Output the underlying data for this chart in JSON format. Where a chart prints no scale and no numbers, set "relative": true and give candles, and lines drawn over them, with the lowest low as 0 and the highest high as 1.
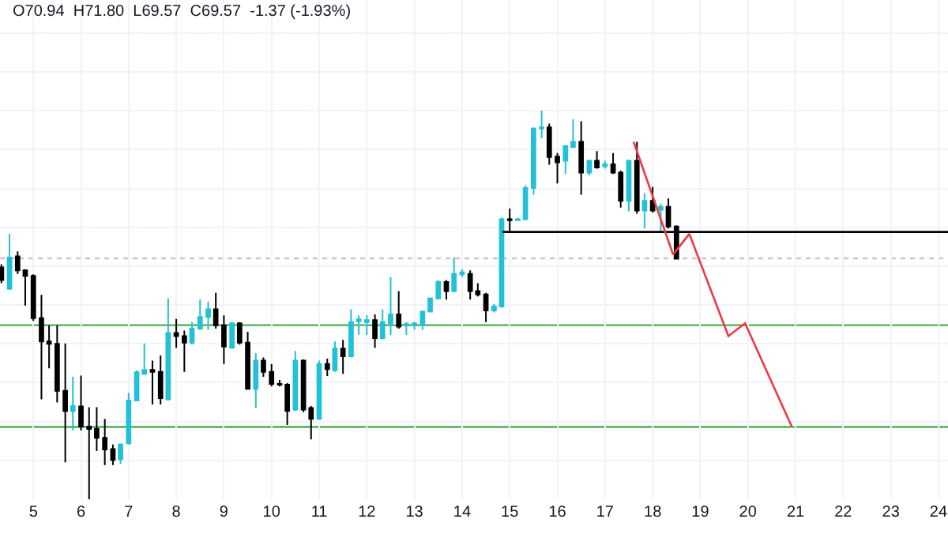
{
  "chart_data": {
    "type": "candlestick",
    "relative": true,
    "annotations": [
      "O70.94  H71.80  L69.57  C69.57  -1.37 (-1.93%)"
    ],
    "colors": [
      "#000000",
      "#22c1d6",
      "#000000",
      "#000000",
      "#000000",
      "#000000",
      "#000000",
      "#000000",
      "#000000",
      "#22c1d6",
      "#000000",
      "#000000",
      "#000000",
      "#000000",
      "#000000",
      "#22c1d6",
      "#22c1d6",
      "#22c1d6",
      "#22c1d6",
      "#000000",
      "#000000",
      "#22c1d6",
      "#000000",
      "#000000",
      "#22c1d6",
      "#22c1d6",
      "#22c1d6",
      "#000000",
      "#000000",
      "#22c1d6",
      "#000000",
      "#000000",
      "#22c1d6",
      "#000000",
      "#000000",
      "#000000",
      "#000000",
      "#22c1d6",
      "#000000",
      "#000000",
      "#22c1d6",
      "#000000",
      "#22c1d6",
      "#000000",
      "#22c1d6",
      "#22c1d6",
      "#22c1d6",
      "#000000",
      "#22c1d6",
      "#22c1d6",
      "#000000",
      "#22c1d6",
      "#22c1d6",
      "#22c1d6",
      "#22c1d6",
      "#22c1d6",
      "#000000",
      "#22c1d6",
      "#22c1d6",
      "#000000",
      "#000000",
      "#000000",
      "#22c1d6",
      "#22c1d6",
      "#000000",
      "#22c1d6",
      "#22c1d6",
      "#22c1d6",
      "#22c1d6",
      "#000000",
      "#000000",
      "#22c1d6",
      "#22c1d6",
      "#000000",
      "#22c1d6",
      "#000000",
      "#22c1d6",
      "#000000",
      "#000000",
      "#22c1d6",
      "#000000",
      "#22c1d6",
      "#000000",
      "#22c1d6",
      "#000000",
      "#000000"
    ],
    "grid": true,
    "xlim": [
      4.3,
      24.2
    ],
    "xticks": [
      5,
      6,
      7,
      8,
      9,
      10,
      11,
      12,
      13,
      14,
      15,
      16,
      17,
      18,
      19,
      20,
      21,
      22,
      23,
      24
    ],
    "x": [
      4.33,
      4.5,
      4.67,
      4.83,
      5,
      5.17,
      5.33,
      5.5,
      5.67,
      5.83,
      6,
      6.17,
      6.33,
      6.5,
      6.67,
      6.83,
      7,
      7.17,
      7.33,
      7.5,
      7.67,
      7.83,
      8,
      8.17,
      8.33,
      8.5,
      8.67,
      8.83,
      9,
      9.17,
      9.33,
      9.5,
      9.67,
      9.83,
      10,
      10.17,
      10.33,
      10.5,
      10.67,
      10.83,
      11,
      11.17,
      11.33,
      11.5,
      11.67,
      11.83,
      12,
      12.17,
      12.33,
      12.5,
      12.67,
      12.83,
      13,
      13.17,
      13.33,
      13.5,
      13.67,
      13.83,
      14,
      14.17,
      14.33,
      14.5,
      14.67,
      14.83,
      15,
      15.17,
      15.33,
      15.5,
      15.67,
      15.83,
      16,
      16.17,
      16.33,
      16.5,
      16.67,
      16.83,
      17,
      17.17,
      17.33,
      17.5,
      17.67,
      17.83,
      18,
      18.17,
      18.33,
      18.5
    ],
    "ohlc": [
      [
        0.597,
        0.605,
        0.556,
        0.564
      ],
      [
        0.542,
        0.683,
        0.539,
        0.622
      ],
      [
        0.625,
        0.638,
        0.58,
        0.589
      ],
      [
        0.589,
        0.592,
        0.498,
        0.575
      ],
      [
        0.575,
        0.579,
        0.459,
        0.466
      ],
      [
        0.466,
        0.526,
        0.257,
        0.406
      ],
      [
        0.406,
        0.448,
        0.337,
        0.4
      ],
      [
        0.4,
        0.448,
        0.249,
        0.279
      ],
      [
        0.279,
        0.401,
        0.095,
        0.227
      ],
      [
        0.227,
        0.315,
        0.177,
        0.24
      ],
      [
        0.239,
        0.318,
        0.177,
        0.187
      ],
      [
        0.187,
        0.237,
        0,
        0.181
      ],
      [
        0.181,
        0.237,
        0.124,
        0.158
      ],
      [
        0.158,
        0.207,
        0.088,
        0.128
      ],
      [
        0.129,
        0.141,
        0.088,
        0.101
      ],
      [
        0.103,
        0.144,
        0.091,
        0.141
      ],
      [
        0.144,
        0.274,
        0.141,
        0.254
      ],
      [
        0.254,
        0.332,
        0.252,
        0.327
      ],
      [
        0.323,
        0.401,
        0.323,
        0.333
      ],
      [
        0.333,
        0.357,
        0.244,
        0.328
      ],
      [
        0.328,
        0.37,
        0.244,
        0.26
      ],
      [
        0.257,
        0.517,
        0.254,
        0.428
      ],
      [
        0.428,
        0.464,
        0.39,
        0.42
      ],
      [
        0.42,
        0.434,
        0.328,
        0.403
      ],
      [
        0.403,
        0.456,
        0.398,
        0.439
      ],
      [
        0.439,
        0.514,
        0.436,
        0.469
      ],
      [
        0.469,
        0.509,
        0.436,
        0.489
      ],
      [
        0.489,
        0.531,
        0.439,
        0.448
      ],
      [
        0.448,
        0.473,
        0.348,
        0.393
      ],
      [
        0.39,
        0.456,
        0.39,
        0.453
      ],
      [
        0.453,
        0.456,
        0.398,
        0.403
      ],
      [
        0.403,
        0.431,
        0.282,
        0.284
      ],
      [
        0.284,
        0.376,
        0.235,
        0.357
      ],
      [
        0.357,
        0.365,
        0.315,
        0.328
      ],
      [
        0.328,
        0.348,
        0.29,
        0.297
      ],
      [
        0.297,
        0.307,
        0.29,
        0.295
      ],
      [
        0.295,
        0.299,
        0.191,
        0.227
      ],
      [
        0.231,
        0.381,
        0.227,
        0.357
      ],
      [
        0.357,
        0.36,
        0.224,
        0.231
      ],
      [
        0.235,
        0.24,
        0.154,
        0.207
      ],
      [
        0.207,
        0.357,
        0.206,
        0.348
      ],
      [
        0.348,
        0.362,
        0.317,
        0.335
      ],
      [
        0.332,
        0.406,
        0.328,
        0.388
      ],
      [
        0.388,
        0.41,
        0.323,
        0.368
      ],
      [
        0.368,
        0.489,
        0.365,
        0.456
      ],
      [
        0.458,
        0.473,
        0.423,
        0.463
      ],
      [
        0.456,
        0.473,
        0.423,
        0.461
      ],
      [
        0.461,
        0.476,
        0.39,
        0.415
      ],
      [
        0.415,
        0.489,
        0.411,
        0.456
      ],
      [
        0.453,
        0.572,
        0.423,
        0.476
      ],
      [
        0.476,
        0.536,
        0.439,
        0.444
      ],
      [
        0.448,
        0.456,
        0.423,
        0.451
      ],
      [
        0.448,
        0.456,
        0.436,
        0.453
      ],
      [
        0.449,
        0.486,
        0.436,
        0.483
      ],
      [
        0.483,
        0.519,
        0.481,
        0.517
      ],
      [
        0.517,
        0.564,
        0.514,
        0.559
      ],
      [
        0.559,
        0.564,
        0.514,
        0.536
      ],
      [
        0.536,
        0.622,
        0.532,
        0.58
      ],
      [
        0.579,
        0.592,
        0.572,
        0.584
      ],
      [
        0.58,
        0.589,
        0.514,
        0.536
      ],
      [
        0.536,
        0.556,
        0.522,
        0.527
      ],
      [
        0.527,
        0.531,
        0.456,
        0.486
      ],
      [
        0.486,
        0.502,
        0.481,
        0.496
      ],
      [
        0.496,
        0.725,
        0.493,
        0.721
      ],
      [
        0.721,
        0.748,
        0.688,
        0.718
      ],
      [
        0.718,
        0.725,
        0.718,
        0.721
      ],
      [
        0.721,
        0.808,
        0.718,
        0.801
      ],
      [
        0.801,
        0.957,
        0.784,
        0.954
      ],
      [
        0.954,
        1.0,
        0.929,
        0.957
      ],
      [
        0.957,
        0.967,
        0.861,
        0.881
      ],
      [
        0.882,
        0.891,
        0.813,
        0.867
      ],
      [
        0.871,
        0.912,
        0.837,
        0.909
      ],
      [
        0.907,
        0.978,
        0.904,
        0.92
      ],
      [
        0.92,
        0.973,
        0.784,
        0.841
      ],
      [
        0.841,
        0.874,
        0.834,
        0.871
      ],
      [
        0.871,
        0.896,
        0.851,
        0.854
      ],
      [
        0.857,
        0.871,
        0.851,
        0.862
      ],
      [
        0.862,
        0.891,
        0.837,
        0.841
      ],
      [
        0.841,
        0.846,
        0.751,
        0.768
      ],
      [
        0.768,
        0.874,
        0.741,
        0.871
      ],
      [
        0.871,
        0.92,
        0.735,
        0.743
      ],
      [
        0.743,
        0.788,
        0.697,
        0.768
      ],
      [
        0.768,
        0.804,
        0.738,
        0.743
      ],
      [
        0.745,
        0.761,
        0.688,
        0.753
      ],
      [
        0.753,
        0.774,
        0.697,
        0.702
      ],
      [
        0.702,
        0.705,
        0.619,
        0.619
      ]
    ],
    "ref_lines": [
      {
        "axis": "y",
        "value": 0.448,
        "color": "#4caf50"
      },
      {
        "axis": "y",
        "value": 0.186,
        "color": "#4caf50"
      },
      {
        "axis": "y",
        "value": 0.62,
        "color": "#c8c8c8",
        "line_style": "dotted"
      }
    ],
    "series": [
      {
        "type": "line",
        "color": "#000000",
        "x": [
          14.85,
          24.2
        ],
        "values": [
          0.688,
          0.688
        ]
      },
      {
        "type": "line",
        "color": "#f23645",
        "x": [
          17.6,
          18.43,
          18.77,
          19.59,
          19.94,
          20.92
        ],
        "values": [
          0.92,
          0.63,
          0.683,
          0.42,
          0.453,
          0.187
        ]
      }
    ]
  }
}
